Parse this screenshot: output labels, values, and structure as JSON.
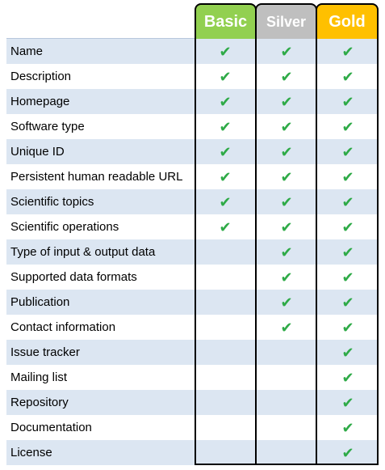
{
  "tiers": {
    "basic": "Basic",
    "silver": "Silver",
    "gold": "Gold"
  },
  "check_symbol": "✔",
  "check_color": "#2eaa47",
  "tier_colors": {
    "basic": "#92d050",
    "silver": "#bfbfbf",
    "gold": "#ffc000"
  },
  "features": [
    {
      "name": "Name",
      "basic": true,
      "silver": true,
      "gold": true
    },
    {
      "name": "Description",
      "basic": true,
      "silver": true,
      "gold": true
    },
    {
      "name": "Homepage",
      "basic": true,
      "silver": true,
      "gold": true
    },
    {
      "name": "Software type",
      "basic": true,
      "silver": true,
      "gold": true
    },
    {
      "name": "Unique ID",
      "basic": true,
      "silver": true,
      "gold": true
    },
    {
      "name": "Persistent human readable URL",
      "basic": true,
      "silver": true,
      "gold": true
    },
    {
      "name": "Scientific topics",
      "basic": true,
      "silver": true,
      "gold": true
    },
    {
      "name": "Scientific operations",
      "basic": true,
      "silver": true,
      "gold": true
    },
    {
      "name": "Type of input & output data",
      "basic": false,
      "silver": true,
      "gold": true
    },
    {
      "name": "Supported data formats",
      "basic": false,
      "silver": true,
      "gold": true
    },
    {
      "name": "Publication",
      "basic": false,
      "silver": true,
      "gold": true
    },
    {
      "name": "Contact information",
      "basic": false,
      "silver": true,
      "gold": true
    },
    {
      "name": "Issue tracker",
      "basic": false,
      "silver": false,
      "gold": true
    },
    {
      "name": "Mailing list",
      "basic": false,
      "silver": false,
      "gold": true
    },
    {
      "name": "Repository",
      "basic": false,
      "silver": false,
      "gold": true
    },
    {
      "name": "Documentation",
      "basic": false,
      "silver": false,
      "gold": true
    },
    {
      "name": "License",
      "basic": false,
      "silver": false,
      "gold": true
    }
  ]
}
